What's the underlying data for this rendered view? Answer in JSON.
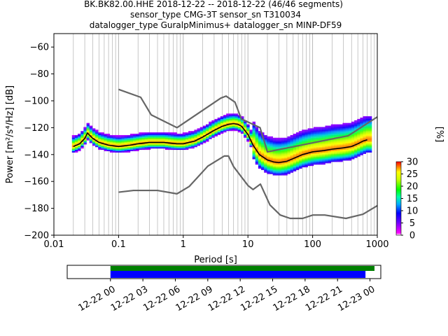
{
  "title_lines": [
    "BK.BK82.00.HHE   2018-12-22 -- 2018-12-22  (46/46 segments)",
    "sensor_type CMG-3T sensor_sn T310034",
    "datalogger_type GuralpMinimus+ datalogger_sn MINP-DF59"
  ],
  "chart_data": [
    {
      "type": "heatmap",
      "title": "BK.BK82.00.HHE   2018-12-22 -- 2018-12-22  (46/46 segments)",
      "xlabel": "Period [s]",
      "ylabel": "Power [m²/s⁴/Hz] [dB]",
      "x_scale": "log",
      "xlim": [
        0.01,
        1000
      ],
      "ylim": [
        -200,
        -50
      ],
      "x_ticks": [
        0.01,
        0.1,
        1,
        10,
        100,
        1000
      ],
      "x_tick_labels": [
        "0.01",
        "0.1",
        "1",
        "10",
        "100",
        "1000"
      ],
      "y_ticks": [
        -200,
        -180,
        -160,
        -140,
        -120,
        -100,
        -80,
        -60
      ],
      "y_tick_labels": [
        "−200",
        "−180",
        "−160",
        "−140",
        "−120",
        "−100",
        "−80",
        "−60"
      ],
      "grid": "vertical, log minor",
      "colorbar": {
        "label": "[%]",
        "range": [
          0,
          30
        ],
        "ticks": [
          0,
          5,
          10,
          15,
          20,
          25,
          30
        ],
        "tick_labels": [
          "0",
          "5",
          "10",
          "15",
          "20",
          "25",
          "30"
        ],
        "colormap": "pqlx"
      },
      "mode_curve": {
        "name": "mode",
        "color": "#000000",
        "x": [
          0.02,
          0.025,
          0.03,
          0.033,
          0.04,
          0.05,
          0.07,
          0.1,
          0.15,
          0.2,
          0.3,
          0.5,
          0.8,
          1,
          1.5,
          2,
          3,
          4,
          5,
          6,
          7,
          8,
          10,
          12,
          15,
          20,
          25,
          30,
          40,
          50,
          70,
          100,
          150,
          200,
          300,
          400,
          500,
          600,
          700
        ],
        "y": [
          -134,
          -132,
          -128,
          -124,
          -128,
          -131,
          -133,
          -134,
          -133,
          -132,
          -131,
          -131,
          -132,
          -132,
          -130,
          -127,
          -122,
          -119,
          -117.5,
          -117,
          -117.5,
          -119,
          -125,
          -133,
          -140,
          -144,
          -145.5,
          -146,
          -145,
          -143,
          -140,
          -138,
          -137,
          -136,
          -135,
          -134,
          -132,
          -130,
          -129
        ]
      },
      "reference_models": [
        {
          "name": "NHNM",
          "color": "#666666",
          "x": [
            0.1,
            0.22,
            0.32,
            0.8,
            3.8,
            4.6,
            6.3,
            7.9,
            15.4,
            20,
            354.8,
            1000
          ],
          "y": [
            -91.5,
            -97.4,
            -110.5,
            -120,
            -98,
            -96.5,
            -101,
            -113.5,
            -120,
            -138,
            -126,
            -112
          ]
        },
        {
          "name": "NLNM",
          "color": "#666666",
          "x": [
            0.1,
            0.17,
            0.4,
            0.8,
            1.24,
            2.4,
            4.3,
            5,
            6,
            10,
            12,
            15.6,
            21.9,
            31.6,
            45,
            70,
            101,
            154,
            328,
            600,
            1000
          ],
          "y": [
            -168,
            -166.7,
            -166.7,
            -169.2,
            -163.7,
            -148.6,
            -141.1,
            -141.1,
            -149,
            -163,
            -166,
            -162,
            -177.5,
            -185,
            -187.5,
            -187.5,
            -185,
            -185,
            -187.5,
            -184.4,
            -178
          ]
        }
      ]
    },
    {
      "type": "bar",
      "xlabel": "",
      "ylabel": "",
      "xlim": [
        "2018-12-21 20:00",
        "2018-12-23 01:00"
      ],
      "x_ticks": [
        "2018-12-22 00:00",
        "2018-12-22 03:00",
        "2018-12-22 06:00",
        "2018-12-22 09:00",
        "2018-12-22 12:00",
        "2018-12-22 15:00",
        "2018-12-22 18:00",
        "2018-12-22 21:00",
        "2018-12-23 00:00"
      ],
      "x_tick_labels": [
        "12-22 00",
        "12-22 03",
        "12-22 06",
        "12-22 09",
        "12-22 12",
        "12-22 15",
        "12-22 18",
        "12-22 21",
        "12-23 00"
      ],
      "series": [
        {
          "color": "#008000",
          "start": "2018-12-22 00:00",
          "end": "2018-12-23 00:25"
        },
        {
          "color": "#0000ff",
          "start": "2018-12-22 00:00",
          "end": "2018-12-22 23:35"
        }
      ]
    }
  ]
}
